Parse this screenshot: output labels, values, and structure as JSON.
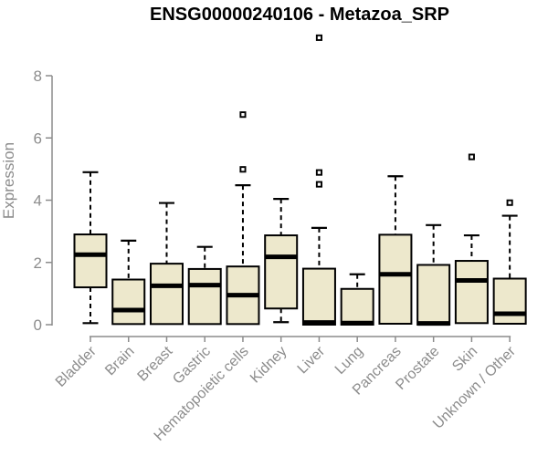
{
  "chart_data": {
    "type": "boxplot",
    "title": "ENSG00000240106 - Metazoa_SRP",
    "ylabel": "Expression",
    "xlabel": "",
    "ylim": [
      0,
      8
    ],
    "yticks": [
      0,
      2,
      4,
      6,
      8
    ],
    "grid": false,
    "legend": "none",
    "categories": [
      "Bladder",
      "Brain",
      "Breast",
      "Gastric",
      "Hematopoietic cells",
      "Kidney",
      "Liver",
      "Lung",
      "Pancreas",
      "Prostate",
      "Skin",
      "Unknown / Other"
    ],
    "series": [
      {
        "name": "Bladder",
        "whisker_low": 0.05,
        "q1": 1.2,
        "median": 2.25,
        "q3": 2.9,
        "whisker_high": 4.9,
        "outliers": []
      },
      {
        "name": "Brain",
        "whisker_low": 0.02,
        "q1": 0.02,
        "median": 0.47,
        "q3": 1.45,
        "whisker_high": 2.7,
        "outliers": []
      },
      {
        "name": "Breast",
        "whisker_low": 0.02,
        "q1": 0.02,
        "median": 1.25,
        "q3": 1.96,
        "whisker_high": 3.91,
        "outliers": []
      },
      {
        "name": "Gastric",
        "whisker_low": 0.02,
        "q1": 0.02,
        "median": 1.27,
        "q3": 1.79,
        "whisker_high": 2.5,
        "outliers": []
      },
      {
        "name": "Hematopoietic cells",
        "whisker_low": 0.02,
        "q1": 0.02,
        "median": 0.95,
        "q3": 1.87,
        "whisker_high": 4.48,
        "outliers": [
          4.99,
          6.75
        ]
      },
      {
        "name": "Kidney",
        "whisker_low": 0.08,
        "q1": 0.52,
        "median": 2.18,
        "q3": 2.87,
        "whisker_high": 4.04,
        "outliers": []
      },
      {
        "name": "Liver",
        "whisker_low": 0.0,
        "q1": 0.0,
        "median": 0.07,
        "q3": 1.8,
        "whisker_high": 3.11,
        "outliers": [
          4.51,
          4.89,
          9.22
        ]
      },
      {
        "name": "Lung",
        "whisker_low": 0.0,
        "q1": 0.0,
        "median": 0.05,
        "q3": 1.15,
        "whisker_high": 1.62,
        "outliers": []
      },
      {
        "name": "Pancreas",
        "whisker_low": 0.03,
        "q1": 0.03,
        "median": 1.62,
        "q3": 2.89,
        "whisker_high": 4.77,
        "outliers": []
      },
      {
        "name": "Prostate",
        "whisker_low": 0.0,
        "q1": 0.0,
        "median": 0.04,
        "q3": 1.92,
        "whisker_high": 3.2,
        "outliers": []
      },
      {
        "name": "Skin",
        "whisker_low": 0.05,
        "q1": 0.05,
        "median": 1.42,
        "q3": 2.05,
        "whisker_high": 2.87,
        "outliers": [
          5.39
        ]
      },
      {
        "name": "Unknown / Other",
        "whisker_low": 0.03,
        "q1": 0.03,
        "median": 0.35,
        "q3": 1.48,
        "whisker_high": 3.5,
        "outliers": [
          3.92
        ]
      }
    ],
    "style": {
      "box_fill": "#EDE8CC",
      "box_stroke": "#000000",
      "median_color": "#000000",
      "whisker_color": "#000000",
      "outlier_color": "#000000",
      "axis_color": "#8C8C8C",
      "tick_label_color": "#8C8C8C",
      "title_color": "#000000",
      "background": "#FFFFFF"
    }
  }
}
